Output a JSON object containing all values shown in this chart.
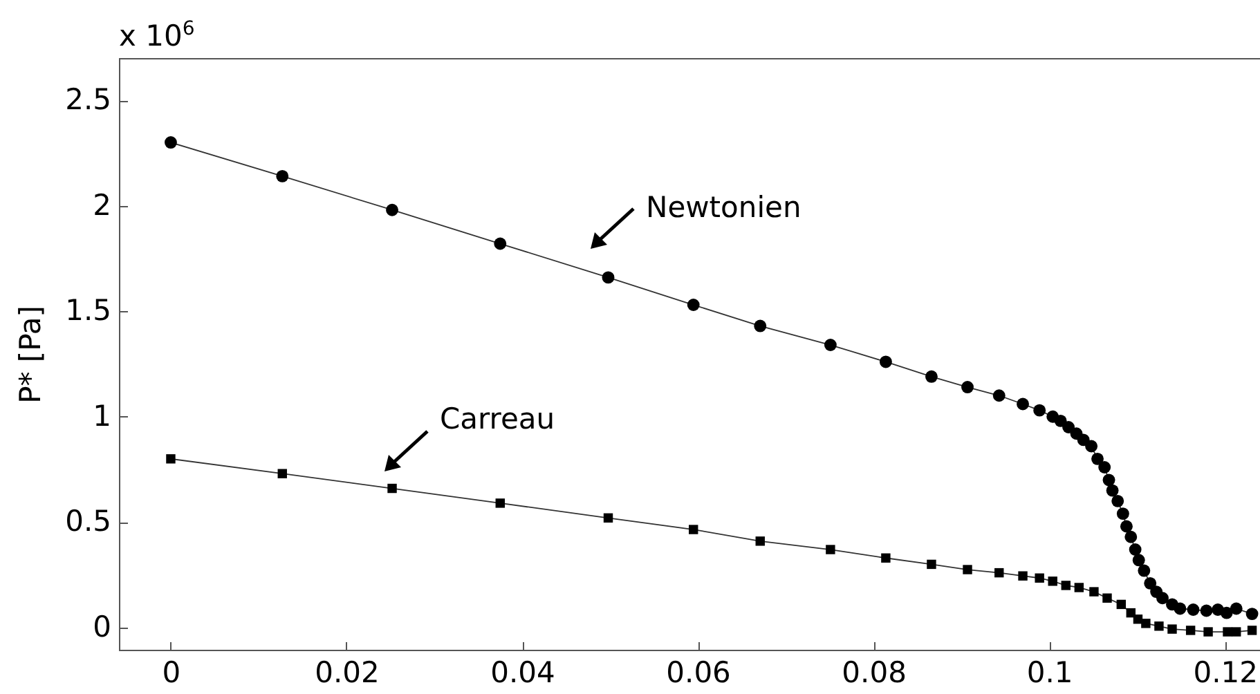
{
  "chart_data": {
    "type": "line",
    "ylabel": "P* [Pa]",
    "xlim": [
      -0.0059,
      0.124
    ],
    "xticks": [
      0,
      0.02,
      0.04,
      0.06,
      0.08,
      0.1,
      0.12
    ],
    "ylim": [
      -0.105,
      2.7
    ],
    "yticks": [
      0,
      0.5,
      1,
      1.5,
      2,
      2.5
    ],
    "grid": false,
    "annotations": [
      "x 10$^{6}$",
      "Newtonien",
      "Carreau"
    ],
    "series": [
      {
        "color": "#000000",
        "marker": "circle",
        "x": [
          0,
          0.0127,
          0.0252,
          0.0375,
          0.0498,
          0.0595,
          0.0671,
          0.0751,
          0.0814,
          0.0866,
          0.0907,
          0.0943,
          0.097,
          0.0989,
          0.1004,
          0.1013,
          0.1022,
          0.1031,
          0.1039,
          0.1048,
          0.1055,
          0.1063,
          0.1068,
          0.1072,
          0.1078,
          0.1084,
          0.1088,
          0.1093,
          0.1098,
          0.1102,
          0.1108,
          0.1115,
          0.1122,
          0.1129,
          0.114,
          0.1149,
          0.1164,
          0.1179,
          0.1192,
          0.1202,
          0.1213,
          0.1231
        ],
        "values": [
          2.3,
          2.14,
          1.98,
          1.82,
          1.66,
          1.53,
          1.43,
          1.34,
          1.26,
          1.19,
          1.14,
          1.1,
          1.06,
          1.03,
          1.0,
          0.98,
          0.95,
          0.92,
          0.89,
          0.86,
          0.8,
          0.76,
          0.7,
          0.65,
          0.6,
          0.54,
          0.48,
          0.43,
          0.37,
          0.32,
          0.27,
          0.21,
          0.17,
          0.14,
          0.11,
          0.09,
          0.085,
          0.08,
          0.085,
          0.07,
          0.09,
          0.065
        ]
      },
      {
        "color": "#000000",
        "marker": "square",
        "x": [
          0,
          0.0127,
          0.0252,
          0.0375,
          0.0498,
          0.0595,
          0.0671,
          0.0751,
          0.0814,
          0.0866,
          0.0907,
          0.0943,
          0.097,
          0.0989,
          0.1004,
          0.1019,
          0.1034,
          0.1051,
          0.1066,
          0.1082,
          0.1093,
          0.1101,
          0.111,
          0.1125,
          0.114,
          0.1161,
          0.1181,
          0.1203,
          0.1213,
          0.1231
        ],
        "values": [
          0.8,
          0.73,
          0.66,
          0.59,
          0.52,
          0.465,
          0.41,
          0.37,
          0.33,
          0.3,
          0.275,
          0.26,
          0.245,
          0.235,
          0.22,
          0.2,
          0.19,
          0.17,
          0.14,
          0.11,
          0.07,
          0.04,
          0.02,
          0.007,
          -0.007,
          -0.013,
          -0.02,
          -0.02,
          -0.02,
          -0.013
        ]
      }
    ]
  }
}
